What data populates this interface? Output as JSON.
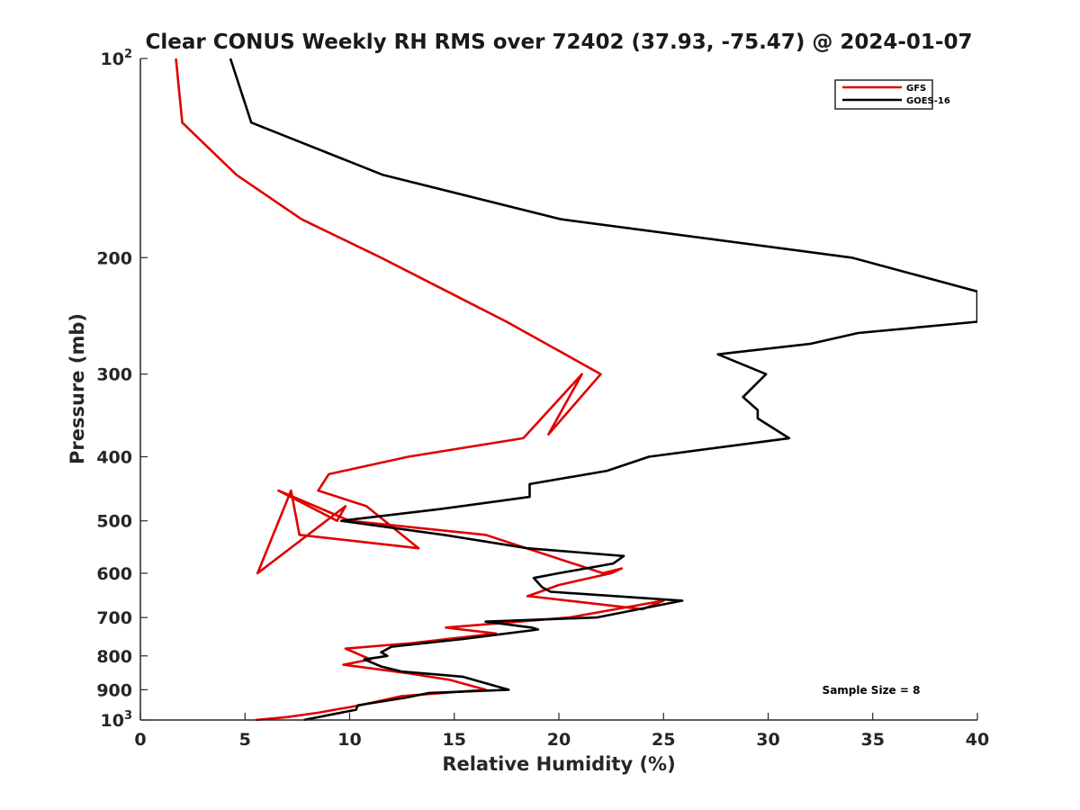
{
  "chart_data": {
    "type": "line",
    "title": "Clear CONUS Weekly RH RMS over 72402 (37.93, -75.47) @ 2024-01-07",
    "xlabel": "Relative Humidity (%)",
    "ylabel": "Pressure (mb)",
    "xlim": [
      0,
      40
    ],
    "ylim": [
      100,
      1000
    ],
    "yscale": "log",
    "y_reversed": true,
    "x_ticks": [
      "0",
      "5",
      "10",
      "15",
      "20",
      "25",
      "30",
      "35",
      "40"
    ],
    "y_ticks": [
      {
        "value": 100,
        "base": "10",
        "exp": "2"
      },
      {
        "value": 200,
        "label": "200"
      },
      {
        "value": 300,
        "label": "300"
      },
      {
        "value": 400,
        "label": "400"
      },
      {
        "value": 500,
        "label": "500"
      },
      {
        "value": 600,
        "label": "600"
      },
      {
        "value": 700,
        "label": "700"
      },
      {
        "value": 800,
        "label": "800"
      },
      {
        "value": 900,
        "label": "900"
      },
      {
        "value": 1000,
        "base": "10",
        "exp": "3"
      }
    ],
    "legend_position": "top-right",
    "annotation": "Sample Size = 8",
    "series": [
      {
        "name": "GFS",
        "color": "#e00000",
        "points": [
          [
            1.7,
            100
          ],
          [
            2.0,
            125
          ],
          [
            4.6,
            150
          ],
          [
            7.7,
            175
          ],
          [
            11.5,
            200
          ],
          [
            17.5,
            250
          ],
          [
            22.0,
            300
          ],
          [
            19.5,
            370
          ],
          [
            21.1,
            300
          ],
          [
            18.3,
            375
          ],
          [
            12.8,
            400
          ],
          [
            9.0,
            425
          ],
          [
            8.5,
            450
          ],
          [
            10.8,
            475
          ],
          [
            13.3,
            550
          ],
          [
            7.6,
            525
          ],
          [
            7.2,
            450
          ],
          [
            5.6,
            600
          ],
          [
            9.8,
            475
          ],
          [
            9.4,
            500
          ],
          [
            6.6,
            450
          ],
          [
            10.0,
            500
          ],
          [
            16.5,
            525
          ],
          [
            22.1,
            600
          ],
          [
            23.0,
            590
          ],
          [
            22.5,
            600
          ],
          [
            20.0,
            625
          ],
          [
            18.5,
            650
          ],
          [
            18.6,
            650
          ],
          [
            24.0,
            680
          ],
          [
            25.0,
            660
          ],
          [
            20.5,
            700
          ],
          [
            14.6,
            725
          ],
          [
            17.0,
            740
          ],
          [
            13.0,
            765
          ],
          [
            9.8,
            780
          ],
          [
            11.0,
            810
          ],
          [
            9.7,
            825
          ],
          [
            12.8,
            850
          ],
          [
            14.8,
            870
          ],
          [
            16.5,
            900
          ],
          [
            12.5,
            920
          ],
          [
            10.5,
            950
          ],
          [
            8.5,
            975
          ],
          [
            7.0,
            990
          ],
          [
            5.5,
            1000
          ]
        ]
      },
      {
        "name": "GOES-16",
        "color": "#000000",
        "points": [
          [
            4.3,
            100
          ],
          [
            5.3,
            125
          ],
          [
            11.6,
            150
          ],
          [
            20.1,
            175
          ],
          [
            34.0,
            200
          ],
          [
            40.0,
            225
          ],
          [
            40.0,
            250
          ],
          [
            34.3,
            260
          ],
          [
            32.0,
            270
          ],
          [
            27.6,
            280
          ],
          [
            29.9,
            300
          ],
          [
            28.8,
            325
          ],
          [
            29.5,
            340
          ],
          [
            29.5,
            350
          ],
          [
            31.0,
            375
          ],
          [
            24.3,
            400
          ],
          [
            22.3,
            420
          ],
          [
            18.6,
            440
          ],
          [
            18.6,
            460
          ],
          [
            14.3,
            480
          ],
          [
            9.6,
            500
          ],
          [
            14.5,
            525
          ],
          [
            18.5,
            550
          ],
          [
            23.1,
            565
          ],
          [
            22.6,
            580
          ],
          [
            20.0,
            600
          ],
          [
            18.8,
            610
          ],
          [
            19.2,
            630
          ],
          [
            19.6,
            640
          ],
          [
            25.9,
            660
          ],
          [
            21.8,
            700
          ],
          [
            16.5,
            710
          ],
          [
            18.7,
            725
          ],
          [
            19.0,
            730
          ],
          [
            15.3,
            755
          ],
          [
            12.0,
            775
          ],
          [
            11.5,
            790
          ],
          [
            11.8,
            800
          ],
          [
            10.7,
            810
          ],
          [
            11.5,
            830
          ],
          [
            12.5,
            845
          ],
          [
            15.4,
            860
          ],
          [
            17.6,
            900
          ],
          [
            13.8,
            910
          ],
          [
            12.7,
            925
          ],
          [
            10.4,
            950
          ],
          [
            10.3,
            965
          ],
          [
            7.8,
            1000
          ]
        ]
      }
    ]
  }
}
